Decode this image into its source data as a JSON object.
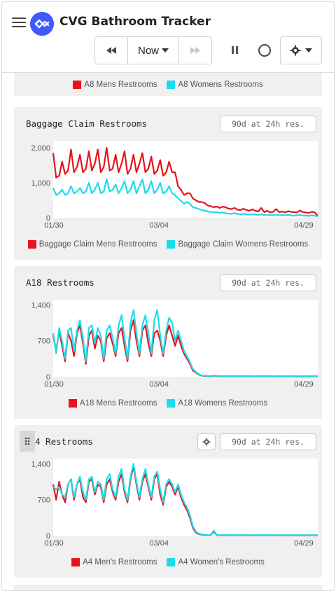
{
  "app": {
    "title": "CVG Bathroom Tracker",
    "now_label": "Now"
  },
  "colors": {
    "mens": "#e8141b",
    "womens": "#1bdcec",
    "accent": "#3d5afe"
  },
  "top_legend": {
    "mens": "A8 Mens Restrooms",
    "womens": "A8 Womens Restrooms"
  },
  "chart_data": [
    {
      "type": "line",
      "title": "Baggage Claim Restrooms",
      "range_badge": "90d at 24h res.",
      "xticks": [
        "01/30",
        "03/04",
        "04/29"
      ],
      "yticks": [
        "2,000",
        "1,000",
        "0"
      ],
      "ylim": [
        0,
        2200
      ],
      "grid": false,
      "legend": "bottom",
      "series": [
        {
          "name": "Baggage Claim Mens Restrooms",
          "values": [
            1850,
            1150,
            1200,
            1600,
            1250,
            1350,
            1950,
            1300,
            1450,
            1800,
            1300,
            1400,
            1900,
            1350,
            1550,
            1950,
            1300,
            1450,
            2000,
            1350,
            1400,
            1800,
            1300,
            1550,
            1900,
            1250,
            1400,
            1800,
            1300,
            1550,
            1850,
            1300,
            1400,
            1750,
            1250,
            1350,
            1650,
            1200,
            1300,
            1600,
            1300,
            1300,
            900,
            800,
            650,
            700,
            700,
            550,
            500,
            450,
            450,
            420,
            350,
            330,
            300,
            320,
            280,
            320,
            300,
            260,
            250,
            280,
            230,
            220,
            260,
            220,
            200,
            240,
            200,
            180,
            280,
            160,
            200,
            150,
            170,
            250,
            160,
            180,
            150,
            190,
            170,
            160,
            150,
            210,
            160,
            150,
            140,
            170,
            150,
            60
          ]
        },
        {
          "name": "Baggage Claim Womens Restrooms",
          "values": [
            850,
            650,
            700,
            800,
            650,
            700,
            900,
            700,
            750,
            850,
            700,
            750,
            1000,
            700,
            800,
            1000,
            700,
            750,
            1100,
            750,
            800,
            950,
            700,
            850,
            1050,
            700,
            800,
            1050,
            700,
            900,
            1100,
            700,
            800,
            1050,
            700,
            800,
            1000,
            700,
            750,
            900,
            700,
            650,
            550,
            480,
            400,
            450,
            400,
            300,
            280,
            250,
            220,
            200,
            180,
            170,
            150,
            160,
            140,
            150,
            130,
            120,
            110,
            130,
            110,
            100,
            110,
            100,
            90,
            100,
            90,
            80,
            100,
            80,
            90,
            70,
            80,
            90,
            70,
            80,
            70,
            80,
            70,
            60,
            70,
            80,
            60,
            60,
            55,
            70,
            60,
            40
          ]
        }
      ]
    },
    {
      "type": "line",
      "title": "A18 Restrooms",
      "range_badge": "90d at 24h res.",
      "xticks": [
        "01/30",
        "03/04",
        "04/29"
      ],
      "yticks": [
        "1,400",
        "700",
        "0"
      ],
      "ylim": [
        0,
        1500
      ],
      "grid": false,
      "legend": "bottom",
      "series": [
        {
          "name": "A18 Mens Restrooms",
          "values": [
            800,
            500,
            900,
            600,
            300,
            850,
            700,
            400,
            850,
            1000,
            650,
            250,
            800,
            900,
            550,
            800,
            700,
            300,
            750,
            850,
            650,
            400,
            850,
            950,
            600,
            300,
            900,
            1100,
            700,
            400,
            900,
            1000,
            650,
            400,
            850,
            900,
            700,
            400,
            800,
            1000,
            800,
            600,
            800,
            600,
            450,
            350,
            250,
            120,
            80,
            40,
            20,
            15,
            12,
            10,
            20,
            15,
            10,
            8,
            10,
            12,
            10,
            8,
            10,
            8,
            10,
            12,
            10,
            8,
            6,
            10,
            8,
            10,
            8,
            10,
            6,
            8,
            10,
            6,
            8,
            6,
            8,
            10,
            6,
            8,
            6,
            8,
            6,
            10,
            8,
            6
          ]
        },
        {
          "name": "A18 Womens Restrooms",
          "values": [
            850,
            450,
            950,
            700,
            350,
            900,
            950,
            500,
            900,
            1100,
            750,
            300,
            950,
            1000,
            650,
            950,
            800,
            350,
            900,
            1000,
            750,
            450,
            1000,
            1200,
            750,
            350,
            1050,
            1300,
            850,
            450,
            1000,
            1200,
            850,
            450,
            1100,
            1300,
            800,
            450,
            900,
            1150,
            1050,
            700,
            900,
            700,
            500,
            400,
            280,
            150,
            90,
            50,
            25,
            20,
            15,
            12,
            25,
            18,
            12,
            10,
            12,
            15,
            12,
            10,
            12,
            10,
            12,
            15,
            12,
            10,
            8,
            12,
            10,
            12,
            10,
            12,
            8,
            10,
            12,
            8,
            10,
            8,
            10,
            12,
            8,
            10,
            8,
            10,
            8,
            12,
            10,
            8
          ]
        }
      ]
    },
    {
      "type": "line",
      "title": "4 Restrooms",
      "range_badge": "90d at 24h res.",
      "xticks": [
        "01/30",
        "03/04",
        "04/29"
      ],
      "yticks": [
        "1,400",
        "700",
        "0"
      ],
      "ylim": [
        0,
        1500
      ],
      "grid": false,
      "legend": "bottom",
      "series": [
        {
          "name": "A4 Men's Restrooms",
          "values": [
            1000,
            700,
            1050,
            800,
            650,
            1000,
            1100,
            700,
            1000,
            1100,
            750,
            650,
            1050,
            1100,
            800,
            1000,
            950,
            650,
            1000,
            1100,
            850,
            700,
            1050,
            1200,
            850,
            650,
            1100,
            1350,
            1000,
            700,
            1050,
            1200,
            950,
            700,
            1100,
            1200,
            800,
            600,
            950,
            1050,
            950,
            800,
            950,
            750,
            600,
            500,
            350,
            150,
            60,
            30,
            20,
            15,
            12,
            10,
            80,
            15,
            10,
            8,
            10,
            12,
            10,
            8,
            10,
            8,
            10,
            12,
            10,
            8,
            6,
            10,
            8,
            10,
            8,
            10,
            6,
            8,
            10,
            6,
            8,
            6,
            8,
            10,
            6,
            8,
            6,
            8,
            6,
            10,
            8,
            6
          ]
        },
        {
          "name": "A4 Women's Restrooms",
          "values": [
            950,
            900,
            950,
            800,
            750,
            1000,
            1100,
            750,
            1000,
            1150,
            850,
            700,
            1100,
            1150,
            850,
            1050,
            1000,
            700,
            1100,
            1200,
            900,
            750,
            1150,
            1300,
            900,
            700,
            1150,
            1400,
            1050,
            750,
            1100,
            1300,
            1000,
            750,
            1150,
            1250,
            900,
            650,
            1000,
            1100,
            1000,
            850,
            1000,
            800,
            650,
            550,
            400,
            180,
            80,
            40,
            25,
            20,
            15,
            12,
            100,
            18,
            12,
            10,
            12,
            15,
            12,
            10,
            12,
            10,
            12,
            15,
            12,
            10,
            8,
            12,
            10,
            12,
            10,
            12,
            8,
            10,
            12,
            8,
            10,
            8,
            10,
            12,
            8,
            10,
            8,
            10,
            8,
            12,
            10,
            8
          ]
        }
      ]
    }
  ]
}
